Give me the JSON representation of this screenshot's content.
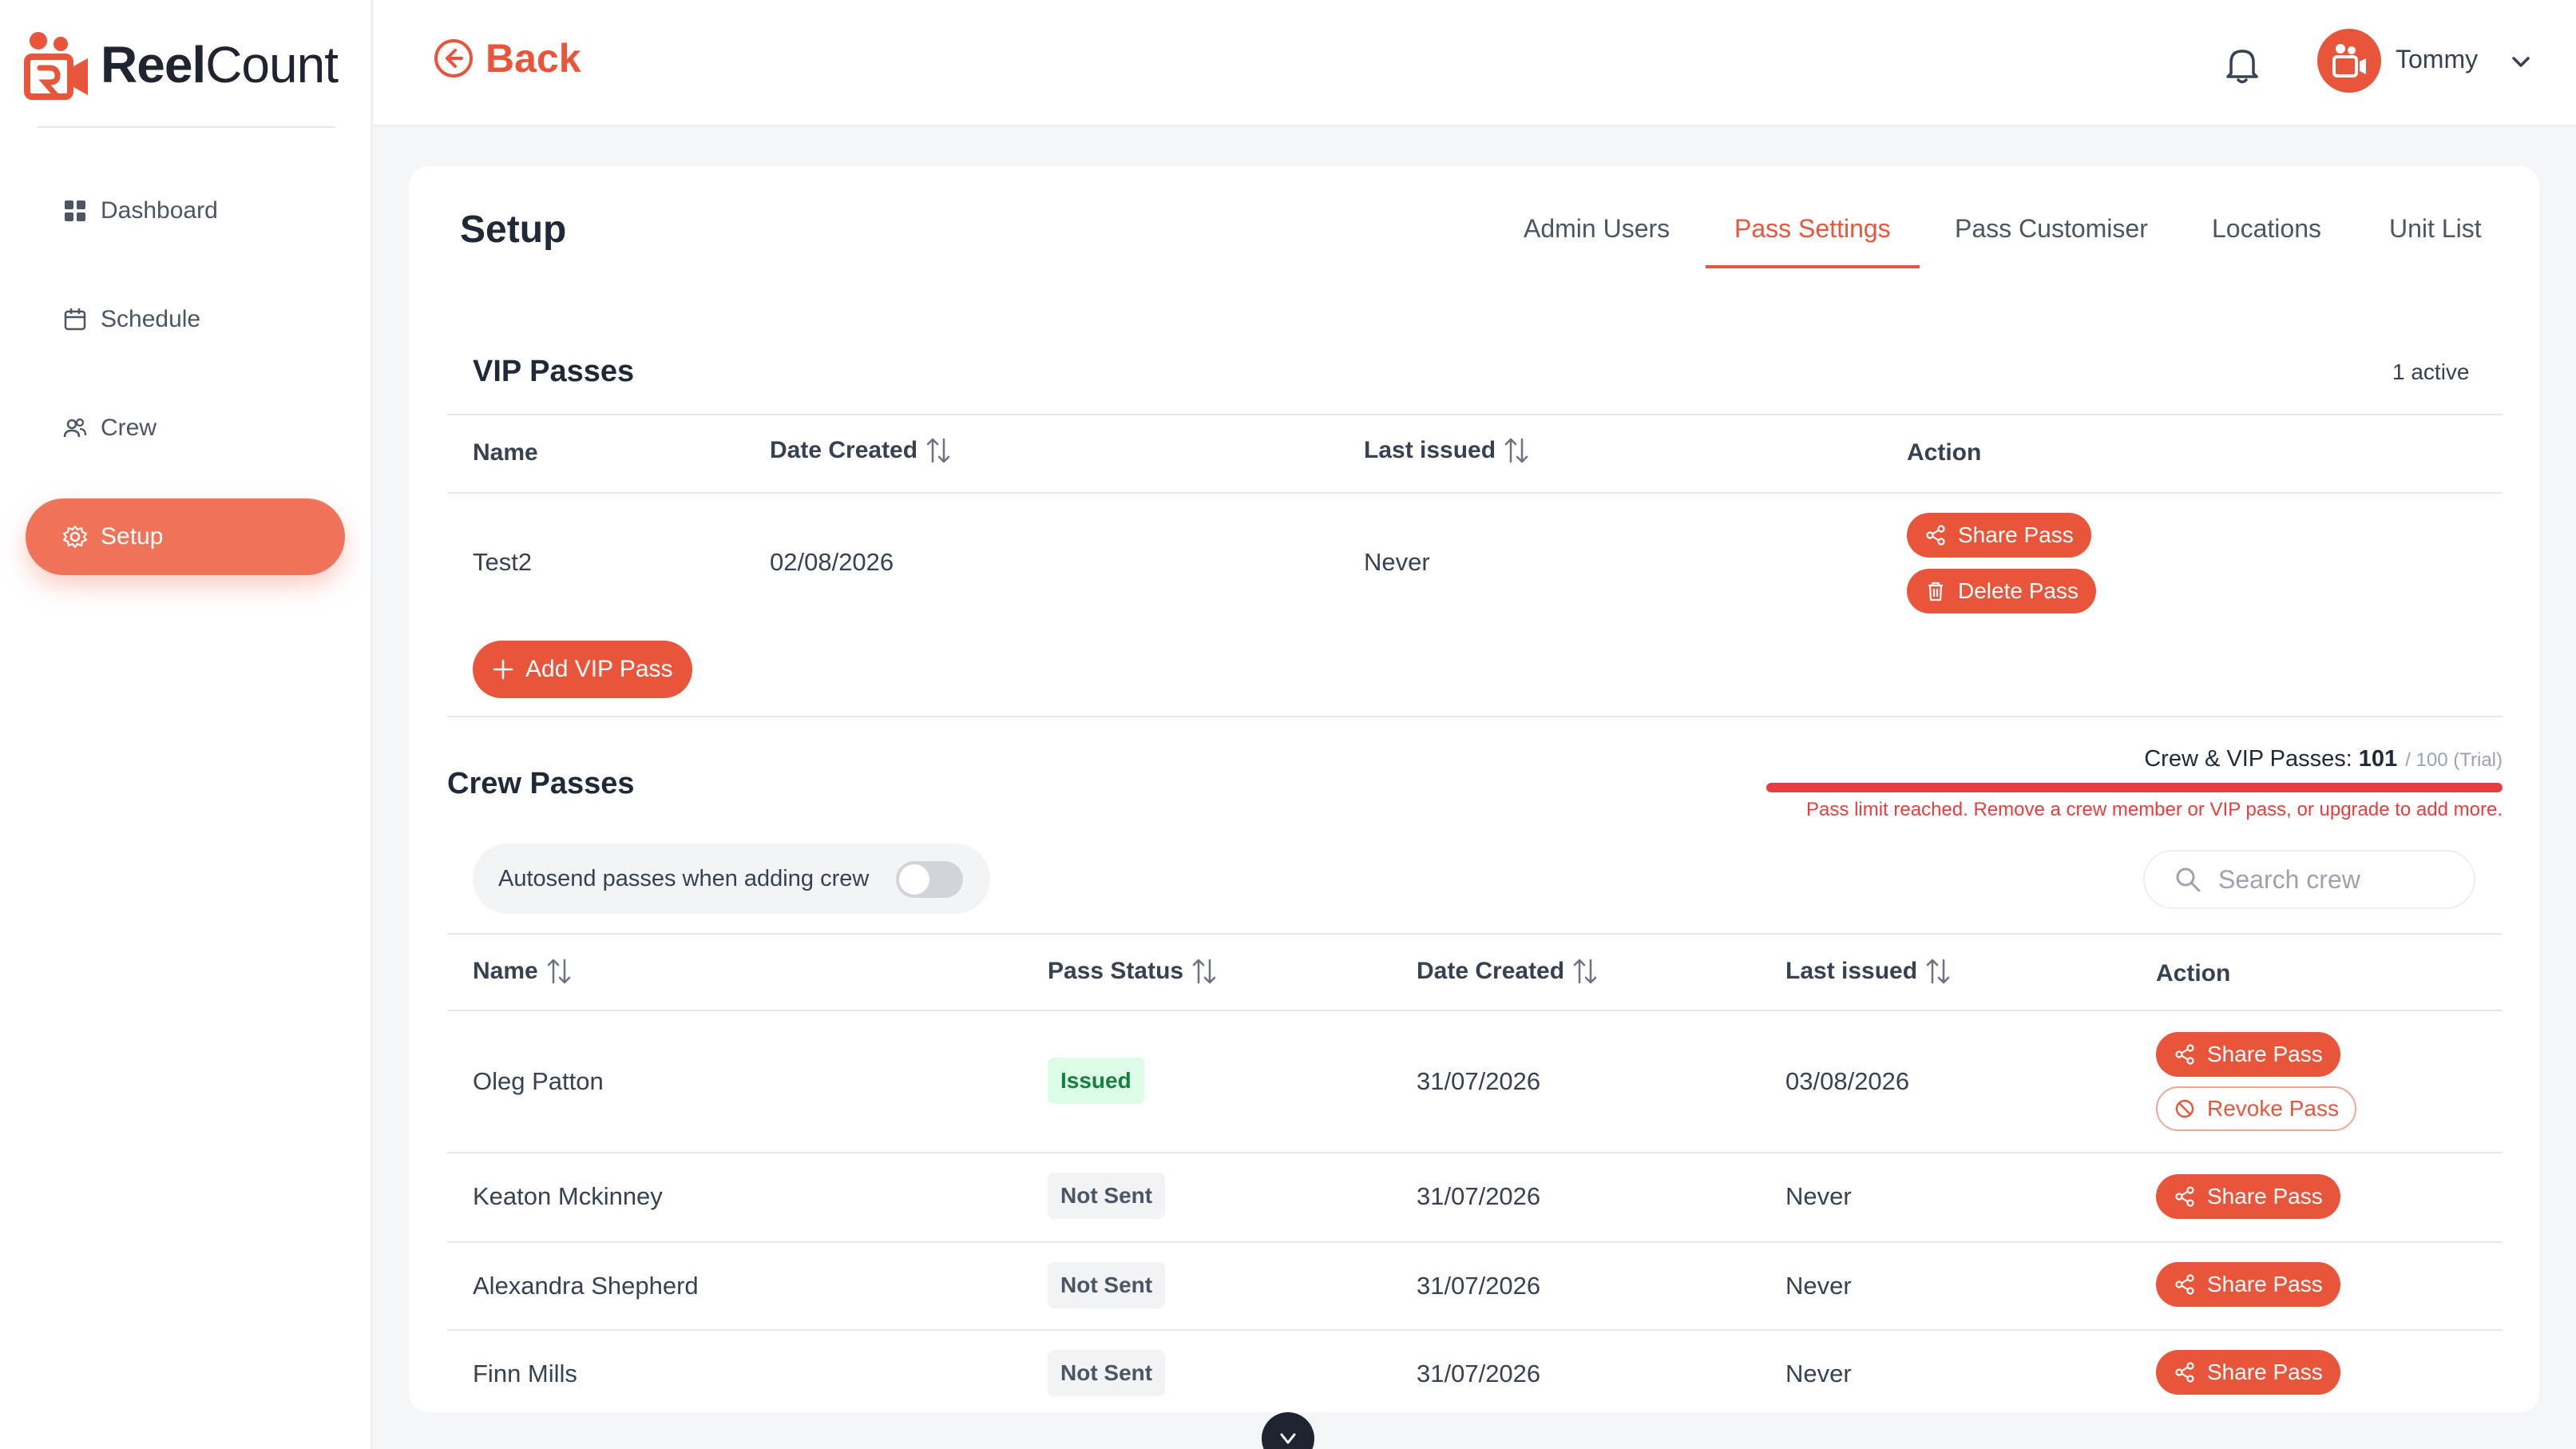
{
  "app": {
    "name_bold": "Reel",
    "name_rest": "Count",
    "brand_color": "#e8553a"
  },
  "sidebar": {
    "items": [
      {
        "label": "Dashboard",
        "icon": "grid-icon"
      },
      {
        "label": "Schedule",
        "icon": "calendar-icon"
      },
      {
        "label": "Crew",
        "icon": "users-icon"
      },
      {
        "label": "Setup",
        "icon": "gear-icon",
        "active": true
      }
    ]
  },
  "topbar": {
    "back_label": "Back",
    "user_name": "Tommy"
  },
  "page": {
    "title": "Setup",
    "tabs": [
      "Admin Users",
      "Pass Settings",
      "Pass Customiser",
      "Locations",
      "Unit List"
    ],
    "active_tab": "Pass Settings"
  },
  "vip": {
    "title": "VIP Passes",
    "active_count": "1 active",
    "columns": [
      "Name",
      "Date Created",
      "Last issued",
      "Action"
    ],
    "rows": [
      {
        "name": "Test2",
        "date_created": "02/08/2026",
        "last_issued": "Never",
        "share_label": "Share Pass",
        "delete_label": "Delete Pass"
      }
    ],
    "add_label": "Add VIP Pass"
  },
  "crew": {
    "title": "Crew Passes",
    "usage_label": "Crew & VIP Passes:",
    "usage_count": "101",
    "usage_limit": "/ 100 (Trial)",
    "usage_fraction": 1.0,
    "limit_message": "Pass limit reached. Remove a crew member or VIP pass, or upgrade to add more.",
    "autosend_label": "Autosend passes when adding crew",
    "autosend_on": false,
    "search_placeholder": "Search crew",
    "columns": [
      "Name",
      "Pass Status",
      "Date Created",
      "Last issued",
      "Action"
    ],
    "rows": [
      {
        "name": "Oleg Patton",
        "status": "Issued",
        "date_created": "31/07/2026",
        "last_issued": "03/08/2026",
        "share_label": "Share Pass",
        "revoke_label": "Revoke Pass"
      },
      {
        "name": "Keaton Mckinney",
        "status": "Not Sent",
        "date_created": "31/07/2026",
        "last_issued": "Never",
        "share_label": "Share Pass"
      },
      {
        "name": "Alexandra Shepherd",
        "status": "Not Sent",
        "date_created": "31/07/2026",
        "last_issued": "Never",
        "share_label": "Share Pass"
      },
      {
        "name": "Finn Mills",
        "status": "Not Sent",
        "date_created": "31/07/2026",
        "last_issued": "Never",
        "share_label": "Share Pass"
      }
    ]
  }
}
